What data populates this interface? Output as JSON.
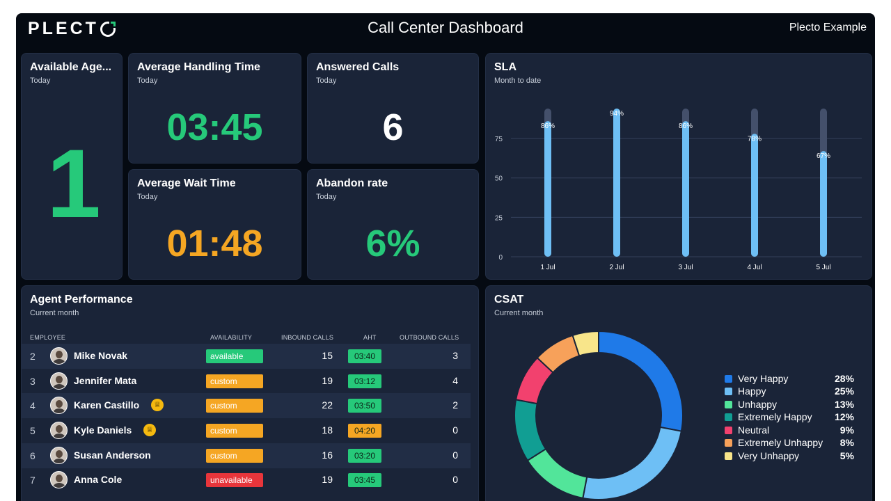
{
  "header": {
    "logo": "PLECTO",
    "title": "Call Center Dashboard",
    "account": "Plecto Example"
  },
  "colors": {
    "green": "#26c97a",
    "orange": "#f5a623",
    "red": "#e8353b",
    "background": "#050a12",
    "card": "#1a2438",
    "bar": "#6ebff5",
    "bar_track": "#44506b"
  },
  "kpis": {
    "available_agents": {
      "title": "Available Age...",
      "subtitle": "Today",
      "value": "1"
    },
    "average_handling_time": {
      "title": "Average Handling Time",
      "subtitle": "Today",
      "value": "03:45"
    },
    "answered_calls": {
      "title": "Answered Calls",
      "subtitle": "Today",
      "value": "6"
    },
    "average_wait_time": {
      "title": "Average Wait Time",
      "subtitle": "Today",
      "value": "01:48"
    },
    "abandon_rate": {
      "title": "Abandon rate",
      "subtitle": "Today",
      "value": "6%"
    }
  },
  "sla": {
    "title": "SLA",
    "subtitle": "Month to date",
    "chart_data": {
      "type": "bar",
      "categories": [
        "1 Jul",
        "2 Jul",
        "3 Jul",
        "4 Jul",
        "5 Jul"
      ],
      "values": [
        86,
        94,
        86,
        78,
        67
      ],
      "value_labels": [
        "86%",
        "94%",
        "86%",
        "78%",
        "67%"
      ],
      "target": 94,
      "y_ticks": [
        "0",
        "25",
        "50",
        "75"
      ],
      "ylim": [
        0,
        94
      ],
      "grid": true
    }
  },
  "agent_performance": {
    "title": "Agent Performance",
    "subtitle": "Current month",
    "columns": [
      "EMPLOYEE",
      "AVAILABILITY",
      "INBOUND CALLS",
      "AHT",
      "OUTBOUND CALLS"
    ],
    "rows": [
      {
        "rank": "2",
        "name": "Mike Novak",
        "badge": false,
        "status": "available",
        "status_color": "#26c97a",
        "inbound": "15",
        "aht": "03:40",
        "aht_color": "#26c97a",
        "outbound": "3"
      },
      {
        "rank": "3",
        "name": "Jennifer Mata",
        "badge": false,
        "status": "custom",
        "status_color": "#f5a623",
        "inbound": "19",
        "aht": "03:12",
        "aht_color": "#26c97a",
        "outbound": "4"
      },
      {
        "rank": "4",
        "name": "Karen Castillo",
        "badge": true,
        "status": "custom",
        "status_color": "#f5a623",
        "inbound": "22",
        "aht": "03:50",
        "aht_color": "#26c97a",
        "outbound": "2"
      },
      {
        "rank": "5",
        "name": "Kyle Daniels",
        "badge": true,
        "status": "custom",
        "status_color": "#f5a623",
        "inbound": "18",
        "aht": "04:20",
        "aht_color": "#f5a623",
        "outbound": "0"
      },
      {
        "rank": "6",
        "name": "Susan Anderson",
        "badge": false,
        "status": "custom",
        "status_color": "#f5a623",
        "inbound": "16",
        "aht": "03:20",
        "aht_color": "#26c97a",
        "outbound": "0"
      },
      {
        "rank": "7",
        "name": "Anna Cole",
        "badge": false,
        "status": "unavailable",
        "status_color": "#e8353b",
        "inbound": "19",
        "aht": "03:45",
        "aht_color": "#26c97a",
        "outbound": "0"
      }
    ]
  },
  "csat": {
    "title": "CSAT",
    "subtitle": "Current month",
    "chart_data": {
      "type": "pie",
      "donut": true,
      "legend_position": "right",
      "categories": [
        "Very Happy",
        "Happy",
        "Unhappy",
        "Extremely Happy",
        "Neutral",
        "Extremely Unhappy",
        "Very Unhappy"
      ],
      "values": [
        28,
        25,
        13,
        12,
        9,
        8,
        5
      ],
      "value_labels": [
        "28%",
        "25%",
        "13%",
        "12%",
        "9%",
        "8%",
        "5%"
      ],
      "colors": [
        "#1f7ae8",
        "#6ebff5",
        "#52e59a",
        "#119e93",
        "#f2416e",
        "#f7a15a",
        "#f8e58a"
      ]
    }
  }
}
